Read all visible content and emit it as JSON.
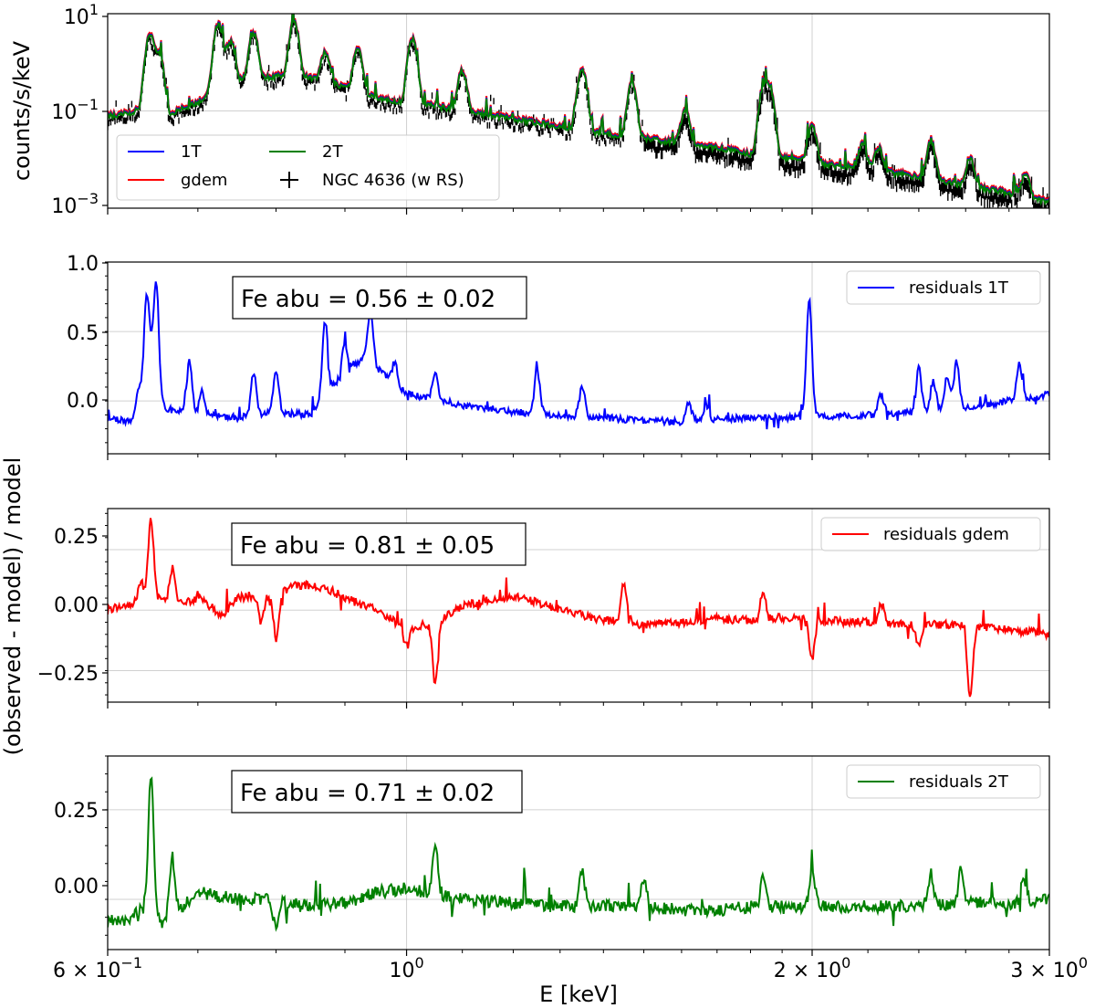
{
  "colors": {
    "1T": "#0000ff",
    "gdem": "#ff0000",
    "2T": "#008000",
    "data": "#000000",
    "grid": "#b0b0b0"
  },
  "chart_data": {
    "type": "line",
    "xlabel": "E [keV]",
    "ylabel_shared": "(observed - model) / model",
    "x_scale": "log",
    "xlim": [
      0.6,
      3.0
    ],
    "x_ticks": [
      {
        "value": 0.6,
        "mantissa": "6 × 10",
        "exp": "−1"
      },
      {
        "value": 1.0,
        "mantissa": "10",
        "exp": "0"
      },
      {
        "value": 2.0,
        "mantissa": "2 × 10",
        "exp": "0"
      },
      {
        "value": 3.0,
        "mantissa": "3 × 10",
        "exp": "0"
      }
    ],
    "panels": [
      {
        "id": "spectrum",
        "type": "line",
        "ylabel": "counts/s/keV",
        "y_scale": "log",
        "ylim": [
          0.001,
          10
        ],
        "y_ticks": [
          {
            "value": 10,
            "mantissa": "10",
            "exp": "1"
          },
          {
            "value": 0.1,
            "mantissa": "10",
            "exp": "−1"
          },
          {
            "value": 0.001,
            "mantissa": "10",
            "exp": "−3"
          }
        ],
        "grid": true,
        "legend": {
          "location": "lower-left",
          "entries": [
            {
              "label": "1T",
              "color_key": "1T",
              "marker": "line"
            },
            {
              "label": "2T",
              "color_key": "2T",
              "marker": "line"
            },
            {
              "label": "gdem",
              "color_key": "gdem",
              "marker": "line"
            },
            {
              "label": "NGC 4636 (w RS)",
              "color_key": "data",
              "marker": "cross"
            }
          ]
        },
        "base_series": {
          "x": [
            0.6,
            0.62,
            0.635,
            0.65,
            0.67,
            0.7,
            0.73,
            0.77,
            0.82,
            0.87,
            0.9,
            0.93,
            0.96,
            1.0,
            1.05,
            1.1,
            1.2,
            1.3,
            1.4,
            1.5,
            1.6,
            1.7,
            1.8,
            1.9,
            2.0,
            2.1,
            2.2,
            2.3,
            2.4,
            2.5,
            2.6,
            2.7,
            2.8,
            2.9,
            3.0
          ],
          "y": [
            0.08,
            0.09,
            0.11,
            0.1,
            0.09,
            0.15,
            0.35,
            0.5,
            0.55,
            0.45,
            0.3,
            0.22,
            0.18,
            0.15,
            0.13,
            0.1,
            0.07,
            0.05,
            0.035,
            0.028,
            0.022,
            0.018,
            0.013,
            0.011,
            0.009,
            0.0075,
            0.0065,
            0.0055,
            0.0045,
            0.0036,
            0.003,
            0.0025,
            0.0021,
            0.0017,
            0.0014
          ]
        },
        "lines": [
          {
            "x": 0.645,
            "y": 3.5
          },
          {
            "x": 0.655,
            "y": 1.5
          },
          {
            "x": 0.725,
            "y": 6.0
          },
          {
            "x": 0.74,
            "y": 2.5
          },
          {
            "x": 0.77,
            "y": 3.5
          },
          {
            "x": 0.825,
            "y": 6.5
          },
          {
            "x": 0.87,
            "y": 1.2
          },
          {
            "x": 0.92,
            "y": 1.8
          },
          {
            "x": 1.01,
            "y": 3.0
          },
          {
            "x": 1.1,
            "y": 0.6
          },
          {
            "x": 1.35,
            "y": 0.7
          },
          {
            "x": 1.47,
            "y": 0.35
          },
          {
            "x": 1.61,
            "y": 0.08
          },
          {
            "x": 1.84,
            "y": 0.28
          },
          {
            "x": 1.86,
            "y": 0.3
          },
          {
            "x": 2.0,
            "y": 0.04
          },
          {
            "x": 2.18,
            "y": 0.015
          },
          {
            "x": 2.24,
            "y": 0.012
          },
          {
            "x": 2.45,
            "y": 0.02
          },
          {
            "x": 2.62,
            "y": 0.008
          },
          {
            "x": 2.88,
            "y": 0.0035
          }
        ]
      },
      {
        "id": "residuals-1T",
        "series_key": "1T",
        "ylabel": "",
        "y_scale": "linear",
        "ylim": [
          -0.38,
          1.0
        ],
        "y_ticks": [
          1.0,
          0.5,
          0.0
        ],
        "y_tick_labels": [
          "1.0",
          "0.5",
          "0.0"
        ],
        "grid": true,
        "legend": {
          "location": "top-right",
          "label": "residuals 1T"
        },
        "annotation": "Fe abu = 0.56 ± 0.02",
        "base_series": {
          "x": [
            0.6,
            0.62,
            0.64,
            0.66,
            0.68,
            0.7,
            0.75,
            0.8,
            0.85,
            0.88,
            0.9,
            0.93,
            0.96,
            1.0,
            1.1,
            1.2,
            1.3,
            1.4,
            1.5,
            1.6,
            1.7,
            1.8,
            1.9,
            2.0,
            2.2,
            2.4,
            2.6,
            2.8,
            3.0
          ],
          "y": [
            -0.12,
            -0.15,
            -0.1,
            -0.05,
            -0.08,
            -0.1,
            -0.12,
            -0.08,
            -0.1,
            0.1,
            0.2,
            0.3,
            0.2,
            0.05,
            -0.03,
            -0.08,
            -0.1,
            -0.12,
            -0.14,
            -0.15,
            -0.13,
            -0.12,
            -0.12,
            -0.11,
            -0.1,
            -0.08,
            -0.05,
            0.0,
            0.05
          ]
        },
        "lines": [
          {
            "x": 0.633,
            "y": 0.08
          },
          {
            "x": 0.641,
            "y": 0.68
          },
          {
            "x": 0.646,
            "y": 0.22
          },
          {
            "x": 0.652,
            "y": 0.83
          },
          {
            "x": 0.69,
            "y": 0.28
          },
          {
            "x": 0.705,
            "y": 0.08
          },
          {
            "x": 0.77,
            "y": 0.2
          },
          {
            "x": 0.8,
            "y": 0.22
          },
          {
            "x": 0.87,
            "y": 0.58
          },
          {
            "x": 0.9,
            "y": 0.42
          },
          {
            "x": 0.94,
            "y": 0.65
          },
          {
            "x": 0.98,
            "y": 0.28
          },
          {
            "x": 1.05,
            "y": 0.2
          },
          {
            "x": 1.25,
            "y": 0.23
          },
          {
            "x": 1.35,
            "y": 0.1
          },
          {
            "x": 1.62,
            "y": -0.02
          },
          {
            "x": 1.67,
            "y": -0.03
          },
          {
            "x": 1.99,
            "y": 0.75
          },
          {
            "x": 2.25,
            "y": 0.05
          },
          {
            "x": 2.4,
            "y": 0.23
          },
          {
            "x": 2.46,
            "y": 0.15
          },
          {
            "x": 2.52,
            "y": 0.18
          },
          {
            "x": 2.56,
            "y": 0.28
          },
          {
            "x": 2.85,
            "y": 0.28
          }
        ]
      },
      {
        "id": "residuals-gdem",
        "series_key": "gdem",
        "ylabel": "",
        "y_scale": "linear",
        "ylim": [
          -0.38,
          0.42
        ],
        "y_ticks": [
          0.25,
          0.0,
          -0.25
        ],
        "y_tick_labels": [
          "0.25",
          "0.00",
          "−0.25"
        ],
        "grid": true,
        "legend": {
          "location": "top-right",
          "label": "residuals gdem"
        },
        "annotation": "Fe abu = 0.81 ± 0.05",
        "base_series": {
          "x": [
            0.6,
            0.62,
            0.64,
            0.66,
            0.68,
            0.7,
            0.73,
            0.75,
            0.78,
            0.8,
            0.82,
            0.85,
            0.88,
            0.9,
            0.95,
            1.0,
            1.05,
            1.1,
            1.2,
            1.3,
            1.4,
            1.5,
            1.6,
            1.7,
            1.8,
            1.9,
            2.0,
            2.2,
            2.4,
            2.6,
            2.8,
            3.0
          ],
          "y": [
            0.0,
            0.02,
            0.05,
            0.04,
            0.03,
            0.05,
            -0.02,
            0.05,
            0.07,
            0.05,
            0.1,
            0.1,
            0.08,
            0.05,
            0.0,
            -0.08,
            -0.05,
            0.02,
            0.06,
            0.0,
            -0.04,
            -0.06,
            -0.05,
            -0.04,
            -0.04,
            -0.03,
            -0.04,
            -0.05,
            -0.06,
            -0.06,
            -0.08,
            -0.1
          ]
        },
        "lines": [
          {
            "x": 0.646,
            "y": 0.38
          },
          {
            "x": 0.635,
            "y": 0.12
          },
          {
            "x": 0.67,
            "y": 0.17
          },
          {
            "x": 0.8,
            "y": -0.12
          },
          {
            "x": 0.78,
            "y": -0.05
          },
          {
            "x": 1.05,
            "y": -0.3
          },
          {
            "x": 1.0,
            "y": -0.15
          },
          {
            "x": 1.45,
            "y": 0.12
          },
          {
            "x": 1.84,
            "y": 0.08
          },
          {
            "x": 2.0,
            "y": -0.2
          },
          {
            "x": 2.4,
            "y": -0.15
          },
          {
            "x": 2.62,
            "y": -0.35
          },
          {
            "x": 2.25,
            "y": 0.03
          }
        ]
      },
      {
        "id": "residuals-2T",
        "series_key": "2T",
        "ylabel": "",
        "y_scale": "linear",
        "ylim": [
          -0.14,
          0.4
        ],
        "y_ticks": [
          0.25,
          0.0
        ],
        "y_tick_labels": [
          "0.25",
          "0.00"
        ],
        "grid": true,
        "legend": {
          "location": "top-right",
          "label": "residuals 2T"
        },
        "annotation": "Fe abu = 0.71 ± 0.02",
        "base_series": {
          "x": [
            0.6,
            0.62,
            0.64,
            0.66,
            0.7,
            0.75,
            0.8,
            0.85,
            0.9,
            0.95,
            1.0,
            1.1,
            1.2,
            1.3,
            1.4,
            1.5,
            1.6,
            1.7,
            1.8,
            1.9,
            2.0,
            2.2,
            2.4,
            2.6,
            2.8,
            3.0
          ],
          "y": [
            -0.06,
            -0.06,
            -0.02,
            -0.07,
            0.02,
            0.0,
            0.0,
            -0.02,
            -0.01,
            0.02,
            0.03,
            0.0,
            -0.01,
            -0.02,
            -0.02,
            -0.02,
            -0.03,
            -0.03,
            -0.02,
            -0.02,
            -0.02,
            -0.02,
            -0.02,
            -0.01,
            -0.01,
            0.0
          ]
        },
        "lines": [
          {
            "x": 0.646,
            "y": 0.34
          },
          {
            "x": 0.67,
            "y": 0.12
          },
          {
            "x": 0.8,
            "y": -0.08
          },
          {
            "x": 1.05,
            "y": 0.15
          },
          {
            "x": 1.35,
            "y": 0.08
          },
          {
            "x": 1.5,
            "y": 0.06
          },
          {
            "x": 1.84,
            "y": 0.06
          },
          {
            "x": 2.0,
            "y": 0.08
          },
          {
            "x": 2.45,
            "y": 0.07
          },
          {
            "x": 2.58,
            "y": 0.08
          },
          {
            "x": 2.87,
            "y": 0.05
          }
        ]
      }
    ]
  }
}
